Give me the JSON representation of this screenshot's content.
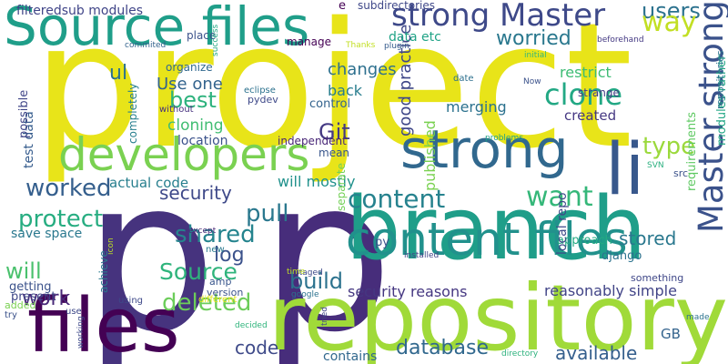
{
  "words": [
    {
      "text": "project",
      "color": "#e8e419"
    },
    {
      "text": "p",
      "color": "#46337e"
    },
    {
      "text": "p",
      "color": "#472d7b"
    },
    {
      "text": "repository",
      "color": "#a0da39"
    },
    {
      "text": "branch",
      "color": "#1f9e89"
    },
    {
      "text": "files",
      "color": "#440154"
    },
    {
      "text": "Source files",
      "color": "#1f9e89"
    },
    {
      "text": "developers",
      "color": "#7ad151"
    },
    {
      "text": "strong",
      "color": "#31688e"
    },
    {
      "text": "li",
      "color": "#38588c"
    },
    {
      "text": "content files",
      "color": "#21918c"
    },
    {
      "text": "strong Master",
      "color": "#3e4989"
    },
    {
      "text": "Master strong",
      "color": "#3b528b"
    },
    {
      "text": "users",
      "color": "#2c728e"
    },
    {
      "text": "way",
      "color": "#c2df23"
    },
    {
      "text": "clone",
      "color": "#22a884"
    },
    {
      "text": "worried",
      "color": "#2a788e"
    },
    {
      "text": "content",
      "color": "#26828e"
    },
    {
      "text": "want",
      "color": "#35b779"
    },
    {
      "text": "worked",
      "color": "#355f8d"
    },
    {
      "text": "security",
      "color": "#3e4989"
    },
    {
      "text": "pull",
      "color": "#2a788e"
    },
    {
      "text": "shared",
      "color": "#25848e"
    },
    {
      "text": "Source",
      "color": "#2fb47c"
    },
    {
      "text": "log",
      "color": "#3b528b"
    },
    {
      "text": "build",
      "color": "#2c728e"
    },
    {
      "text": "deleted",
      "color": "#6ccd5a"
    },
    {
      "text": "protect",
      "color": "#27ad81"
    },
    {
      "text": "work",
      "color": "#482878"
    },
    {
      "text": "will",
      "color": "#4ac16d"
    },
    {
      "text": "code",
      "color": "#3e4a89"
    },
    {
      "text": "database",
      "color": "#31688e"
    },
    {
      "text": "available",
      "color": "#355f8d"
    },
    {
      "text": "Git",
      "color": "#443983"
    },
    {
      "text": "best",
      "color": "#2db27d"
    },
    {
      "text": "ul",
      "color": "#2c728e"
    },
    {
      "text": "type",
      "color": "#9bd93c"
    },
    {
      "text": "stored",
      "color": "#2a788e"
    },
    {
      "text": "security reasons",
      "color": "#453781"
    },
    {
      "text": "reasonably simple",
      "color": "#414487"
    },
    {
      "text": "good practice",
      "color": "#3f4788"
    },
    {
      "text": "merging",
      "color": "#2c728e"
    },
    {
      "text": "published",
      "color": "#7ad151"
    },
    {
      "text": "changes",
      "color": "#2d708e"
    },
    {
      "text": "Use one",
      "color": "#33638d"
    },
    {
      "text": "cloning",
      "color": "#40bd72"
    },
    {
      "text": "created",
      "color": "#453882"
    },
    {
      "text": "restrict",
      "color": "#3dbc74"
    },
    {
      "text": "back",
      "color": "#287d8e"
    },
    {
      "text": "data etc",
      "color": "#20a386"
    },
    {
      "text": "will mostly",
      "color": "#21918c"
    },
    {
      "text": "actual code",
      "color": "#277f8e"
    },
    {
      "text": "location",
      "color": "#3b528b"
    },
    {
      "text": "test data",
      "color": "#365c8d"
    },
    {
      "text": "possible",
      "color": "#404688"
    },
    {
      "text": "save space",
      "color": "#2a788e"
    },
    {
      "text": "filteredsub modules",
      "color": "#404588"
    },
    {
      "text": "subdirectories",
      "color": "#3f4889"
    },
    {
      "text": "manage",
      "color": "#440154"
    },
    {
      "text": "place",
      "color": "#3b528b"
    },
    {
      "text": "independent",
      "color": "#482677"
    },
    {
      "text": "mean",
      "color": "#39568c"
    },
    {
      "text": "control",
      "color": "#33638d"
    },
    {
      "text": "organize",
      "color": "#31688e"
    },
    {
      "text": "completely",
      "color": "#277f8e"
    },
    {
      "text": "eclipse",
      "color": "#2c728e"
    },
    {
      "text": "pydev",
      "color": "#3e4989"
    },
    {
      "text": "without",
      "color": "#46307e"
    },
    {
      "text": "strange",
      "color": "#433e85"
    },
    {
      "text": "date",
      "color": "#2d708e"
    },
    {
      "text": "separate",
      "color": "#73d056"
    },
    {
      "text": "django",
      "color": "#2c728e"
    },
    {
      "text": "approach",
      "color": "#24aa83"
    },
    {
      "text": "GB",
      "color": "#33638d"
    },
    {
      "text": "local repo",
      "color": "#3e4a89"
    },
    {
      "text": "contains",
      "color": "#31688e"
    },
    {
      "text": "requirements",
      "color": "#5ec962"
    },
    {
      "text": "modules rather",
      "color": "#22a785"
    },
    {
      "text": "src",
      "color": "#3b528b"
    },
    {
      "text": "SVN",
      "color": "#2ab07f"
    },
    {
      "text": "something",
      "color": "#3f4788"
    },
    {
      "text": "repositories",
      "color": "#2c728e"
    },
    {
      "text": "problems",
      "color": "#1fa188"
    },
    {
      "text": "py",
      "color": "#3b528b"
    },
    {
      "text": "installed",
      "color": "#414487"
    },
    {
      "text": "staged",
      "color": "#3e4a89"
    },
    {
      "text": "tried",
      "color": "#404688"
    },
    {
      "text": "time",
      "color": "#c2df23"
    },
    {
      "text": "google",
      "color": "#2c728e"
    },
    {
      "text": "version",
      "color": "#3b528b"
    },
    {
      "text": "amp",
      "color": "#39568c"
    },
    {
      "text": "new",
      "color": "#2a788e"
    },
    {
      "text": "except",
      "color": "#482878"
    },
    {
      "text": "different",
      "color": "#e5e419"
    },
    {
      "text": "icon",
      "color": "#bddf26"
    },
    {
      "text": "using",
      "color": "#3e4989"
    },
    {
      "text": "decided",
      "color": "#2fb47c"
    },
    {
      "text": "made",
      "color": "#2c728e"
    },
    {
      "text": "directory",
      "color": "#2db27d"
    },
    {
      "text": "achieve",
      "color": "#2a788e"
    },
    {
      "text": "getting",
      "color": "#3b528b"
    },
    {
      "text": "present",
      "color": "#3f4788"
    },
    {
      "text": "added",
      "color": "#7ad151"
    },
    {
      "text": "try",
      "color": "#3b528b"
    },
    {
      "text": "use",
      "color": "#3e4989"
    },
    {
      "text": "working",
      "color": "#3e4989"
    },
    {
      "text": "commited",
      "color": "#33638d"
    },
    {
      "text": "success",
      "color": "#22a884"
    },
    {
      "text": "Thanks",
      "color": "#c2df23"
    },
    {
      "text": "plugin",
      "color": "#365c8d"
    },
    {
      "text": "beforehand",
      "color": "#443983"
    },
    {
      "text": "initial",
      "color": "#35b779"
    },
    {
      "text": "Now",
      "color": "#3b528b"
    },
    {
      "text": "e",
      "color": "#440154"
    }
  ]
}
